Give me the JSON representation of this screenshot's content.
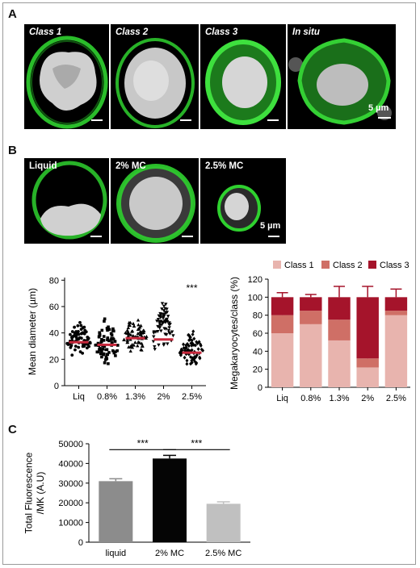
{
  "panel_labels": {
    "a": "A",
    "b": "B",
    "c": "C"
  },
  "panel_a": {
    "images": [
      {
        "label": "Class 1",
        "italic": true
      },
      {
        "label": "Class 2",
        "italic": true
      },
      {
        "label": "Class 3",
        "italic": true
      },
      {
        "label": "In situ",
        "italic": true
      }
    ],
    "scale_label": "5 µm"
  },
  "panel_b_images": {
    "images": [
      {
        "label": "Liquid"
      },
      {
        "label": "2% MC"
      },
      {
        "label": "2.5% MC"
      }
    ],
    "scale_label": "5 µm"
  },
  "colors": {
    "membrane_green": "#2fd12f",
    "nucleus_gray": "#d9d9d9",
    "mean_line": "#c8283c",
    "class1": "#e8b4ae",
    "class2": "#cf6f66",
    "class3": "#a5142b",
    "bar_liquid": "#8c8c8c",
    "bar_2mc": "#050505",
    "bar_25mc": "#c0c0c0"
  },
  "chart_data": [
    {
      "type": "scatter",
      "ylabel": "Mean diameter (µm)",
      "categories": [
        "Liq",
        "0.8%",
        "1.3%",
        "2%",
        "2.5%"
      ],
      "yticks": [
        0,
        20,
        40,
        60,
        80
      ],
      "ylim": [
        0,
        82
      ],
      "means": [
        33,
        31,
        36,
        35,
        25
      ],
      "ranges": [
        [
          20,
          53
        ],
        [
          12,
          55
        ],
        [
          20,
          55
        ],
        [
          24,
          70
        ],
        [
          12,
          45
        ]
      ],
      "markers": [
        "circle",
        "square",
        "triangle-up",
        "triangle-down",
        "diamond"
      ],
      "significance": "***"
    },
    {
      "type": "bar",
      "stacked": true,
      "ylabel": "Megakaryocytes/class (%)",
      "categories": [
        "Liq",
        "0.8%",
        "1.3%",
        "2%",
        "2.5%"
      ],
      "yticks": [
        0,
        20,
        40,
        60,
        80,
        100,
        120
      ],
      "ylim": [
        0,
        120
      ],
      "legend_position": "top",
      "series": [
        {
          "name": "Class 1",
          "values": [
            60,
            70,
            52,
            22,
            80
          ]
        },
        {
          "name": "Class 2",
          "values": [
            20,
            15,
            23,
            10,
            5
          ]
        },
        {
          "name": "Class 3",
          "values": [
            20,
            15,
            25,
            68,
            15
          ]
        }
      ],
      "errors": [
        5,
        3,
        12,
        12,
        9
      ]
    },
    {
      "type": "bar",
      "ylabel": "Total Fluorescence /MK (A.U)",
      "categories": [
        "liquid",
        "2% MC",
        "2.5% MC"
      ],
      "values": [
        31000,
        42500,
        19500
      ],
      "errors": [
        1200,
        1600,
        1000
      ],
      "yticks": [
        0,
        10000,
        20000,
        30000,
        40000,
        50000
      ],
      "ylim": [
        0,
        50000
      ],
      "significance": [
        {
          "from": 0,
          "to": 1,
          "label": "***"
        },
        {
          "from": 1,
          "to": 2,
          "label": "***"
        }
      ]
    }
  ]
}
